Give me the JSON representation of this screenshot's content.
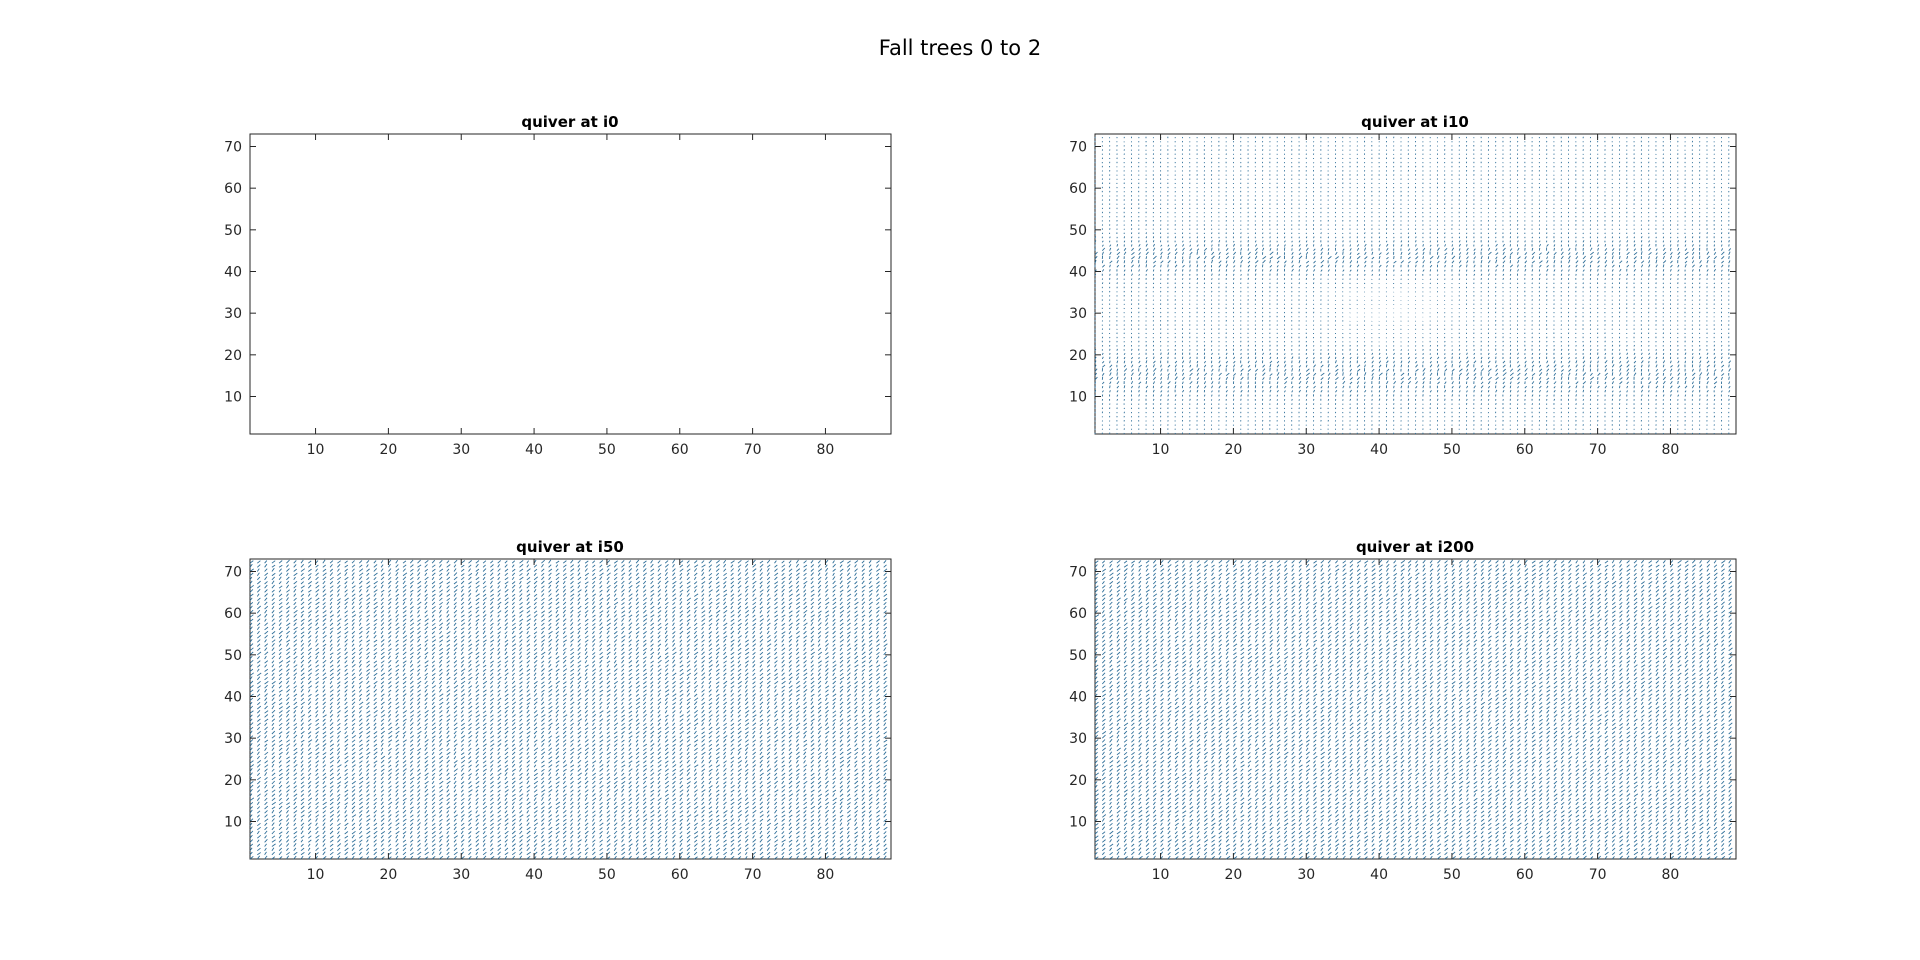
{
  "figure_title": "Fall trees 0 to 2",
  "colors": {
    "arrow": "#2f6f99",
    "axes": "#262626"
  },
  "chart_data": [
    {
      "type": "quiver",
      "title": "quiver at i0",
      "xlim": [
        1,
        89
      ],
      "ylim": [
        1,
        73
      ],
      "xticks": [
        10,
        20,
        30,
        40,
        50,
        60,
        70,
        80
      ],
      "yticks": [
        10,
        20,
        30,
        40,
        50,
        60,
        70
      ],
      "field": "empty",
      "grid_step": 1
    },
    {
      "type": "quiver",
      "title": "quiver at i10",
      "xlim": [
        1,
        89
      ],
      "ylim": [
        1,
        73
      ],
      "xticks": [
        10,
        20,
        30,
        40,
        50,
        60,
        70,
        80
      ],
      "yticks": [
        10,
        20,
        30,
        40,
        50,
        60,
        70
      ],
      "field": "partial",
      "grid_step": 1
    },
    {
      "type": "quiver",
      "title": "quiver at i50",
      "xlim": [
        1,
        89
      ],
      "ylim": [
        1,
        73
      ],
      "xticks": [
        10,
        20,
        30,
        40,
        50,
        60,
        70,
        80
      ],
      "yticks": [
        10,
        20,
        30,
        40,
        50,
        60,
        70
      ],
      "field": "dense",
      "grid_step": 1
    },
    {
      "type": "quiver",
      "title": "quiver at i200",
      "xlim": [
        1,
        89
      ],
      "ylim": [
        1,
        73
      ],
      "xticks": [
        10,
        20,
        30,
        40,
        50,
        60,
        70,
        80
      ],
      "yticks": [
        10,
        20,
        30,
        40,
        50,
        60,
        70
      ],
      "field": "dense",
      "grid_step": 1
    }
  ]
}
